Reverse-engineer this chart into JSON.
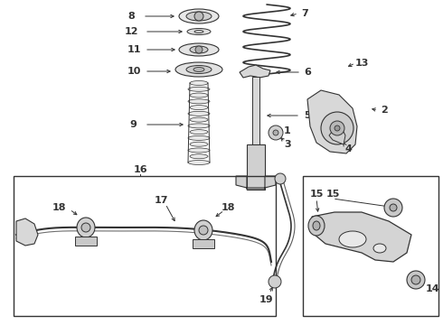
{
  "bg_color": "#ffffff",
  "lc": "#333333",
  "lc_thin": "#555555",
  "fs": 8,
  "figw": 4.9,
  "figh": 3.6,
  "dpi": 100,
  "labels": {
    "8": [
      152,
      338,
      175,
      338
    ],
    "12": [
      148,
      315,
      175,
      315
    ],
    "11": [
      148,
      295,
      175,
      295
    ],
    "10": [
      148,
      272,
      175,
      272
    ],
    "9": [
      148,
      225,
      185,
      222
    ],
    "7": [
      328,
      342,
      300,
      340
    ],
    "6": [
      340,
      285,
      300,
      278
    ],
    "5": [
      335,
      238,
      300,
      230
    ],
    "4": [
      380,
      198,
      365,
      210
    ],
    "3": [
      305,
      200,
      292,
      208
    ],
    "1": [
      305,
      215,
      288,
      218
    ],
    "2": [
      415,
      240,
      400,
      240
    ],
    "13": [
      390,
      295,
      380,
      285
    ],
    "16": [
      155,
      183,
      155,
      185
    ],
    "18a": [
      70,
      225,
      85,
      228
    ],
    "17": [
      175,
      218,
      195,
      228
    ],
    "18b": [
      248,
      228,
      230,
      235
    ],
    "19": [
      285,
      285,
      278,
      275
    ],
    "15a": [
      358,
      228,
      358,
      235
    ],
    "15b": [
      358,
      280,
      355,
      272
    ],
    "14": [
      390,
      320,
      378,
      318
    ]
  }
}
